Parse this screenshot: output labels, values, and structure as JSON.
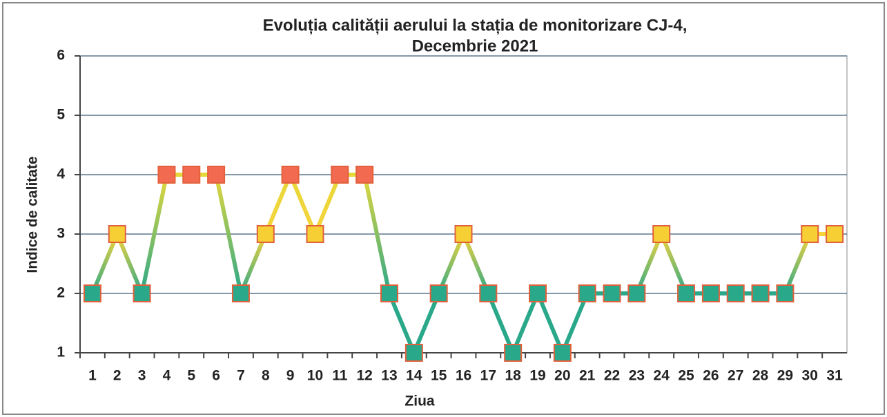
{
  "chart_data": {
    "type": "line",
    "title": [
      "Evoluția calității aerului la stația de monitorizare CJ-4,",
      "Decembrie 2021"
    ],
    "x_label": "Ziua",
    "y_label": "Indice de calitate",
    "categories": [
      1,
      2,
      3,
      4,
      5,
      6,
      7,
      8,
      9,
      10,
      11,
      12,
      13,
      14,
      15,
      16,
      17,
      18,
      19,
      20,
      21,
      22,
      23,
      24,
      25,
      26,
      27,
      28,
      29,
      30,
      31
    ],
    "values": [
      2,
      3,
      2,
      4,
      4,
      4,
      2,
      3,
      4,
      3,
      4,
      4,
      2,
      1,
      2,
      3,
      2,
      1,
      2,
      1,
      2,
      2,
      2,
      3,
      2,
      2,
      2,
      2,
      2,
      3,
      3
    ],
    "marker_colors": [
      "#2aa88a",
      "#f6cf34",
      "#2aa88a",
      "#f26a4f",
      "#f26a4f",
      "#f26a4f",
      "#2aa88a",
      "#f6cf34",
      "#f26a4f",
      "#f6cf34",
      "#f26a4f",
      "#f26a4f",
      "#2aa88a",
      "#2aa88a",
      "#2aa88a",
      "#f6cf34",
      "#2aa88a",
      "#2aa88a",
      "#2aa88a",
      "#2aa88a",
      "#2aa88a",
      "#2aa88a",
      "#2aa88a",
      "#f6cf34",
      "#2aa88a",
      "#2aa88a",
      "#2aa88a",
      "#2aa88a",
      "#2aa88a",
      "#f6cf34",
      "#f6cf34"
    ],
    "line_colors": {
      "1": "#2aa88a",
      "2": "#2aa88a",
      "3": "#f6d43a",
      "4": "#e6d83a"
    },
    "marker_edge_color": "#e2603c",
    "ylim": [
      1,
      6
    ],
    "yticks": [
      1,
      2,
      3,
      4,
      5,
      6
    ],
    "grid": true
  }
}
